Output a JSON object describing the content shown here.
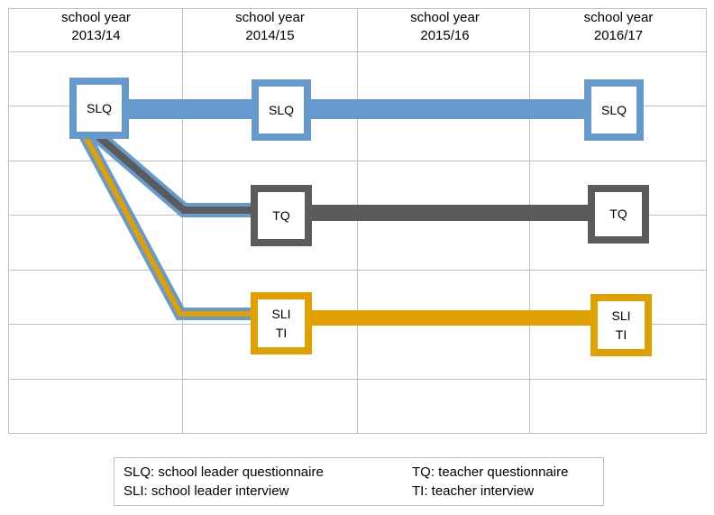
{
  "headers": [
    {
      "line1": "school year",
      "line2": "2013/14"
    },
    {
      "line1": "school year",
      "line2": "2014/15"
    },
    {
      "line1": "school year",
      "line2": "2015/16"
    },
    {
      "line1": "school year",
      "line2": "2016/17"
    }
  ],
  "nodes": {
    "slq_2013": [
      "SLQ"
    ],
    "slq_2014": [
      "SLQ"
    ],
    "slq_2016": [
      "SLQ"
    ],
    "tq_2014": [
      "TQ"
    ],
    "tq_2016": [
      "TQ"
    ],
    "sli_ti_2014": [
      "SLI",
      "TI"
    ],
    "sli_ti_2016": [
      "SLI",
      "TI"
    ]
  },
  "legend": {
    "slq": "SLQ: school leader questionnaire",
    "tq": "TQ: teacher questionnaire",
    "sli": "SLI: school leader interview",
    "ti": "TI: teacher interview"
  },
  "colors": {
    "slq": "#6699cc",
    "tq": "#5b5b5b",
    "sli_ti": "#e0a000",
    "grid": "#bfbfbf"
  }
}
